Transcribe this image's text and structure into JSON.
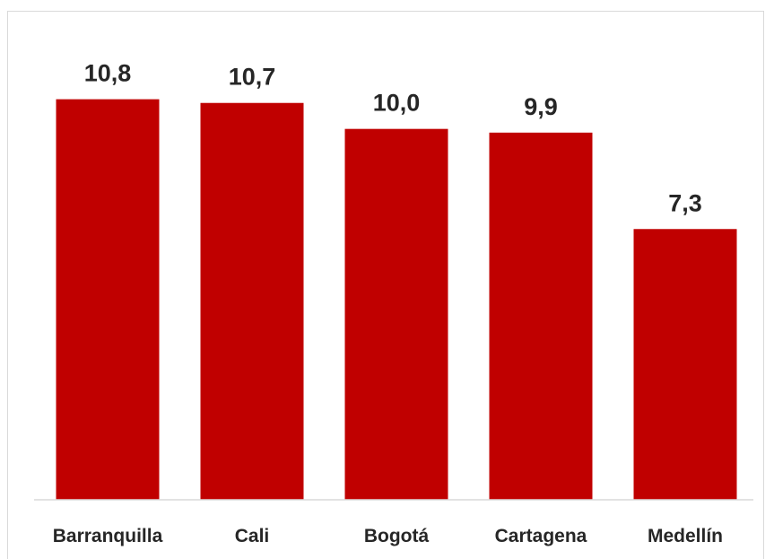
{
  "chart_data": {
    "type": "bar",
    "categories": [
      "Barranquilla",
      "Cali",
      "Bogotá",
      "Cartagena",
      "Medellín"
    ],
    "values": [
      10.8,
      10.7,
      10.0,
      9.9,
      7.3
    ],
    "data_labels": [
      "10,8",
      "10,7",
      "10,0",
      "9,9",
      "7,3"
    ],
    "title": "",
    "xlabel": "",
    "ylabel": "",
    "ylim": [
      0,
      12
    ],
    "grid": false,
    "legend": "none",
    "bar_color": "#c00000"
  }
}
